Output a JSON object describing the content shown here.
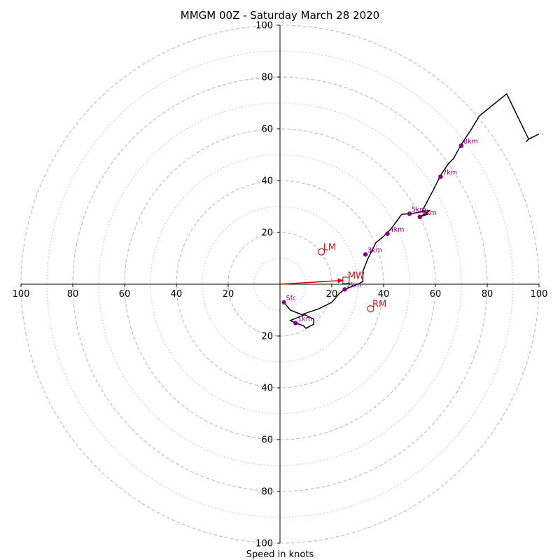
{
  "chart_data": {
    "type": "hodograph",
    "title": "MMGM 00Z - Saturday March 28 2020",
    "xlabel": "Speed in knots",
    "ylabel": "",
    "xlim": [
      -100,
      100
    ],
    "ylim": [
      -100,
      100
    ],
    "units": "knots",
    "rings_dashed": [
      20,
      40,
      60,
      80,
      100
    ],
    "rings_dotted": [
      10,
      30,
      50,
      70,
      90
    ],
    "x_tick_labels": [
      "100",
      "80",
      "60",
      "40",
      "20",
      "20",
      "40",
      "60",
      "80",
      "100"
    ],
    "x_tick_values": [
      -100,
      -80,
      -60,
      -40,
      -20,
      20,
      40,
      60,
      80,
      100
    ],
    "y_tick_labels": [
      "100",
      "80",
      "60",
      "40",
      "20",
      "20",
      "40",
      "60",
      "80",
      "100"
    ],
    "y_tick_values": [
      100,
      80,
      60,
      40,
      20,
      -20,
      -40,
      -60,
      -80,
      -100
    ],
    "hodograph_trace": {
      "color": "#000000",
      "points": [
        [
          1.5,
          -7
        ],
        [
          4,
          -10
        ],
        [
          9,
          -12
        ],
        [
          4,
          -14
        ],
        [
          6,
          -15
        ],
        [
          9,
          -16
        ],
        [
          10,
          -17
        ],
        [
          12,
          -16
        ],
        [
          13,
          -15.5
        ],
        [
          13,
          -13.5
        ],
        [
          12,
          -13
        ],
        [
          10,
          -12
        ],
        [
          9,
          -11.5
        ],
        [
          15,
          -9.5
        ],
        [
          20,
          -7
        ],
        [
          23,
          -3.5
        ],
        [
          25,
          -2
        ],
        [
          30,
          0
        ],
        [
          32,
          1
        ],
        [
          32,
          5
        ],
        [
          34,
          10
        ],
        [
          37,
          16
        ],
        [
          40,
          18.5
        ],
        [
          41,
          19.5
        ],
        [
          43,
          21.5
        ],
        [
          47,
          27
        ],
        [
          50,
          27.2
        ],
        [
          52,
          27.5
        ],
        [
          55,
          28
        ],
        [
          58,
          28.5
        ],
        [
          54,
          26
        ],
        [
          57,
          27
        ],
        [
          55,
          28.5
        ],
        [
          59,
          36
        ],
        [
          62,
          42
        ],
        [
          65,
          46.5
        ],
        [
          67,
          48.5
        ],
        [
          70,
          54
        ],
        [
          74,
          60
        ],
        [
          77,
          65
        ],
        [
          87.5,
          73.5
        ],
        [
          96,
          56
        ],
        [
          100,
          58
        ],
        [
          96,
          56
        ],
        [
          95,
          55
        ]
      ]
    },
    "height_markers": [
      {
        "label": "Sfc",
        "u": 1.5,
        "v": -7
      },
      {
        "label": "1km",
        "u": 6,
        "v": -15
      },
      {
        "label": "2km",
        "u": 25,
        "v": -2
      },
      {
        "label": "3km",
        "u": 33,
        "v": 11.5
      },
      {
        "label": "4km",
        "u": 41.5,
        "v": 19.5
      },
      {
        "label": "5km",
        "u": 50,
        "v": 27.2
      },
      {
        "label": "6km",
        "u": 54,
        "v": 26
      },
      {
        "label": "7km",
        "u": 62,
        "v": 41.5
      },
      {
        "label": "8km",
        "u": 70,
        "v": 53.5
      }
    ],
    "marker_color": "#800080",
    "storm_motions": [
      {
        "label": "LM",
        "u": 16,
        "v": 12.5,
        "marker": "circle"
      },
      {
        "label": "RM",
        "u": 35,
        "v": -9.5,
        "marker": "circle"
      },
      {
        "label": "MW",
        "u": 25.5,
        "v": 1.5,
        "marker": "square"
      }
    ],
    "storm_motion_color": "#b22222",
    "mean_wind_arrow": {
      "u0": 0,
      "v0": 0,
      "u1": 24.5,
      "v1": 1.5,
      "color": "#e00000"
    },
    "ring_color": "#bbbbbb",
    "grid": true,
    "legend": "none"
  }
}
